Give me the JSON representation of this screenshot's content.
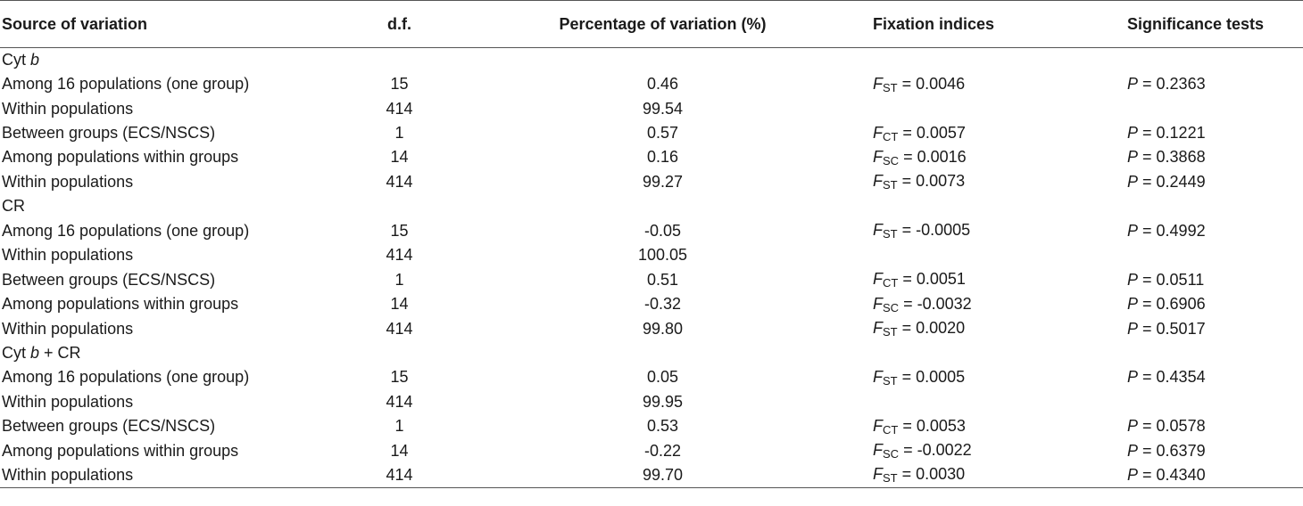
{
  "headers": {
    "source": "Source of variation",
    "df": "d.f.",
    "percentage": "Percentage of variation (%)",
    "fixation": "Fixation indices",
    "significance": "Significance tests"
  },
  "sections": [
    {
      "title_prefix": "Cyt ",
      "title_italic": "b",
      "title_suffix": "",
      "rows": [
        {
          "source": "Among 16 populations (one group)",
          "df": "15",
          "pct": "0.46",
          "f_sym": "F",
          "f_sub": "ST",
          "f_val": " = 0.0046",
          "p_sym": "P",
          "p_val": " = 0.2363"
        },
        {
          "source": "Within populations",
          "df": "414",
          "pct": "99.54",
          "f_sym": "",
          "f_sub": "",
          "f_val": "",
          "p_sym": "",
          "p_val": ""
        },
        {
          "source": "Between groups (ECS/NSCS)",
          "df": "1",
          "pct": "0.57",
          "f_sym": "F",
          "f_sub": "CT",
          "f_val": " = 0.0057",
          "p_sym": "P",
          "p_val": " = 0.1221"
        },
        {
          "source": "Among populations within groups",
          "df": "14",
          "pct": "0.16",
          "f_sym": "F",
          "f_sub": "SC",
          "f_val": " = 0.0016",
          "p_sym": "P",
          "p_val": " = 0.3868"
        },
        {
          "source": "Within populations",
          "df": "414",
          "pct": "99.27",
          "f_sym": "F",
          "f_sub": "ST",
          "f_val": " = 0.0073",
          "p_sym": "P",
          "p_val": " = 0.2449"
        }
      ]
    },
    {
      "title_prefix": "CR",
      "title_italic": "",
      "title_suffix": "",
      "rows": [
        {
          "source": "Among 16 populations (one group)",
          "df": "15",
          "pct": "-0.05",
          "f_sym": "F",
          "f_sub": "ST",
          "f_val": " = -0.0005",
          "p_sym": "P",
          "p_val": " = 0.4992"
        },
        {
          "source": "Within populations",
          "df": "414",
          "pct": "100.05",
          "f_sym": "",
          "f_sub": "",
          "f_val": "",
          "p_sym": "",
          "p_val": ""
        },
        {
          "source": "Between groups (ECS/NSCS)",
          "df": "1",
          "pct": "0.51",
          "f_sym": "F",
          "f_sub": "CT",
          "f_val": " = 0.0051",
          "p_sym": "P",
          "p_val": " = 0.0511"
        },
        {
          "source": "Among populations within groups",
          "df": "14",
          "pct": "-0.32",
          "f_sym": "F",
          "f_sub": "SC",
          "f_val": " = -0.0032",
          "p_sym": "P",
          "p_val": " = 0.6906"
        },
        {
          "source": "Within populations",
          "df": "414",
          "pct": "99.80",
          "f_sym": "F",
          "f_sub": "ST",
          "f_val": " = 0.0020",
          "p_sym": "P",
          "p_val": " = 0.5017"
        }
      ]
    },
    {
      "title_prefix": "Cyt ",
      "title_italic": "b",
      "title_suffix": " + CR",
      "rows": [
        {
          "source": "Among 16 populations (one group)",
          "df": "15",
          "pct": "0.05",
          "f_sym": "F",
          "f_sub": "ST",
          "f_val": " = 0.0005",
          "p_sym": "P",
          "p_val": " = 0.4354"
        },
        {
          "source": "Within populations",
          "df": "414",
          "pct": "99.95",
          "f_sym": "",
          "f_sub": "",
          "f_val": "",
          "p_sym": "",
          "p_val": ""
        },
        {
          "source": "Between groups (ECS/NSCS)",
          "df": "1",
          "pct": "0.53",
          "f_sym": "F",
          "f_sub": "CT",
          "f_val": " = 0.0053",
          "p_sym": "P",
          "p_val": " = 0.0578"
        },
        {
          "source": "Among populations within groups",
          "df": "14",
          "pct": "-0.22",
          "f_sym": "F",
          "f_sub": "SC",
          "f_val": " = -0.0022",
          "p_sym": "P",
          "p_val": " = 0.6379"
        },
        {
          "source": "Within populations",
          "df": "414",
          "pct": "99.70",
          "f_sym": "F",
          "f_sub": "ST",
          "f_val": " = 0.0030",
          "p_sym": "P",
          "p_val": " = 0.4340"
        }
      ]
    }
  ]
}
